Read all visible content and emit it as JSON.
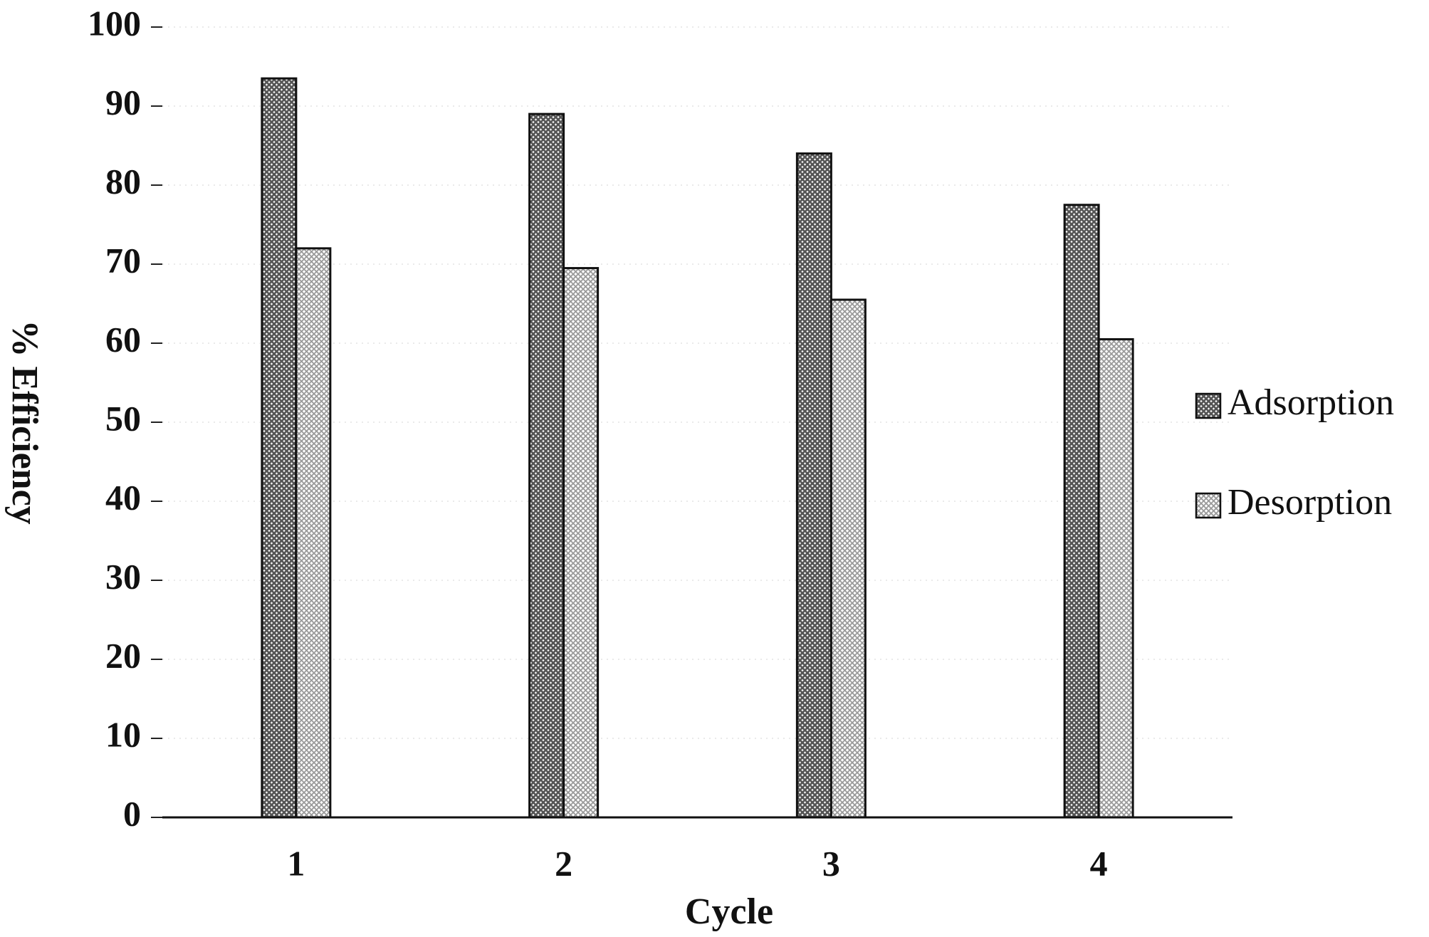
{
  "chart_data": {
    "type": "bar",
    "x_label": "Cycle",
    "y_label": "% Efficiency",
    "categories": [
      "1",
      "2",
      "3",
      "4"
    ],
    "series": [
      {
        "name": "Adsorption",
        "color": "#555555",
        "values": [
          93.5,
          89,
          84,
          77.5
        ]
      },
      {
        "name": "Desorption",
        "color": "#9a9a9a",
        "values": [
          72,
          69.5,
          65.5,
          60.5
        ]
      }
    ],
    "ylim": [
      0,
      100
    ],
    "yticks": [
      0,
      10,
      20,
      30,
      40,
      50,
      60,
      70,
      80,
      90,
      100
    ],
    "grid": true,
    "legend": "right"
  }
}
